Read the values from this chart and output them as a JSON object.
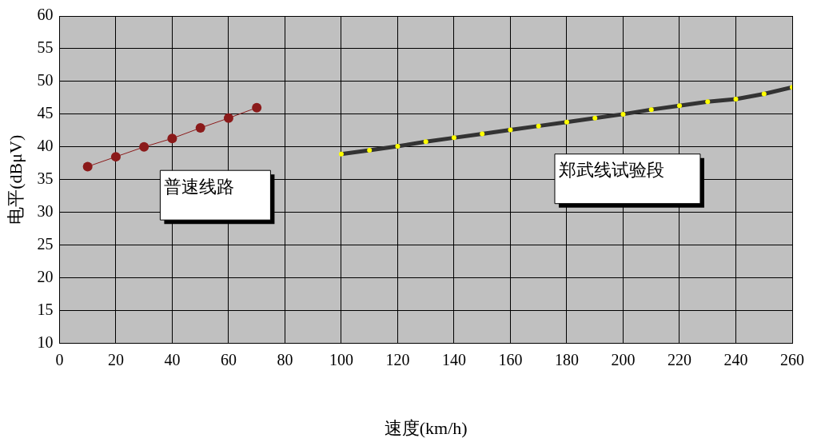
{
  "chart_data": {
    "type": "line",
    "xlabel": "速度(km/h)",
    "ylabel": "电平(dBμV)",
    "xlim": [
      0,
      260
    ],
    "xticks": [
      0,
      20,
      40,
      60,
      80,
      100,
      120,
      140,
      160,
      180,
      200,
      220,
      240,
      260
    ],
    "ylim": [
      10,
      60
    ],
    "yticks": [
      10,
      15,
      20,
      25,
      30,
      35,
      40,
      45,
      50,
      55,
      60
    ],
    "grid": true,
    "marker": "circle",
    "legend": false,
    "series": [
      {
        "name": "普速线路",
        "color": "#8b1a1a",
        "x": [
          10,
          20,
          30,
          40,
          50,
          60,
          70
        ],
        "values": [
          37,
          38.5,
          40,
          41.3,
          42.9,
          44.4,
          46
        ]
      },
      {
        "name": "郑武线试验段",
        "color": "#333333",
        "x": [
          100,
          110,
          120,
          130,
          140,
          150,
          160,
          170,
          180,
          190,
          200,
          210,
          220,
          230,
          240,
          250,
          260
        ],
        "values": [
          38.9,
          39.5,
          40.1,
          40.8,
          41.4,
          42,
          42.6,
          43.2,
          43.8,
          44.4,
          45,
          45.7,
          46.3,
          46.9,
          47.3,
          48.1,
          49.1
        ]
      }
    ]
  }
}
